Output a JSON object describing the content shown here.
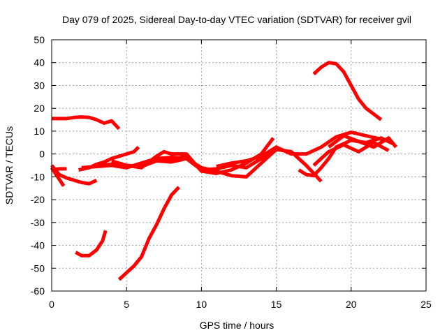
{
  "chart_data": {
    "type": "line",
    "title": "Day 079 of 2025, Sidereal Day-to-day VTEC variation (SDTVAR) for receiver gvil",
    "xlabel": "GPS time / hours",
    "ylabel": "SDTVAR / TECUs",
    "xlim": [
      0,
      25
    ],
    "ylim": [
      -60,
      50
    ],
    "xticks": [
      0,
      5,
      10,
      15,
      20,
      25
    ],
    "yticks": [
      -60,
      -50,
      -40,
      -30,
      -20,
      -10,
      0,
      10,
      20,
      30,
      40,
      50
    ],
    "grid": true,
    "color": "#ff0000",
    "series": [
      {
        "x": [
          0.0,
          0.5,
          1.0,
          1.5,
          2.0,
          2.5,
          3.0,
          3.5,
          4.0,
          4.5
        ],
        "y": [
          15.5,
          15.5,
          15.5,
          16.0,
          16.2,
          16.0,
          15.0,
          13.5,
          14.5,
          11.0
        ]
      },
      {
        "x": [
          0.0,
          0.5,
          1.0,
          1.5,
          2.0,
          2.5,
          3.0
        ],
        "y": [
          -5.0,
          -9.0,
          -10.5,
          -11.5,
          -12.5,
          -13.0,
          -11.5
        ]
      },
      {
        "x": [
          0.0,
          0.3,
          0.6,
          0.8
        ],
        "y": [
          -6.0,
          -9.0,
          -12.0,
          -14.0
        ]
      },
      {
        "x": [
          0.0,
          0.5,
          1.0
        ],
        "y": [
          -7.0,
          -6.5,
          -6.5
        ]
      },
      {
        "x": [
          1.6,
          2.0,
          2.5,
          3.0,
          3.4,
          3.6
        ],
        "y": [
          -43.0,
          -44.5,
          -44.5,
          -42.0,
          -38.0,
          -33.5
        ]
      },
      {
        "x": [
          1.8,
          2.5,
          3.0,
          3.5,
          4.0,
          4.5,
          5.0,
          5.5,
          5.8
        ],
        "y": [
          -7.0,
          -6.0,
          -4.5,
          -3.5,
          -2.0,
          -1.0,
          0.0,
          1.0,
          3.0
        ]
      },
      {
        "x": [
          2.0,
          3.0,
          4.0,
          5.0,
          6.0,
          7.0,
          8.0,
          9.0,
          10.0,
          11.0,
          12.0,
          13.0,
          14.0,
          15.0
        ],
        "y": [
          -6.0,
          -5.5,
          -5.0,
          -6.0,
          -4.0,
          -2.0,
          -1.5,
          -2.0,
          -7.0,
          -6.5,
          -5.0,
          -6.0,
          -2.0,
          2.5
        ]
      },
      {
        "x": [
          3.0,
          4.0,
          5.0,
          6.0,
          7.0,
          8.0,
          9.0,
          10.0,
          11.0
        ],
        "y": [
          -5.0,
          -4.5,
          -5.0,
          -5.5,
          -3.0,
          -2.5,
          -1.0,
          -7.0,
          -8.0
        ]
      },
      {
        "x": [
          4.0,
          5.0,
          6.0,
          7.0,
          7.5,
          8.0,
          9.0,
          10.0,
          11.0,
          12.0,
          13.0,
          14.0,
          14.8
        ],
        "y": [
          -3.0,
          -5.0,
          -6.0,
          -1.0,
          1.0,
          0.0,
          0.0,
          -7.5,
          -8.5,
          -7.0,
          -4.0,
          0.0,
          7.0
        ]
      },
      {
        "x": [
          4.5,
          5.0,
          5.5,
          6.0,
          6.5,
          7.0,
          7.5,
          8.0,
          8.5
        ],
        "y": [
          -55.0,
          -52.0,
          -49.0,
          -45.0,
          -37.0,
          -31.0,
          -24.0,
          -18.0,
          -14.5
        ]
      },
      {
        "x": [
          6.0,
          7.0,
          8.0,
          9.0,
          10.0,
          11.0,
          12.0,
          13.0,
          14.0,
          15.0,
          16.0,
          17.0,
          18.0
        ],
        "y": [
          -5.0,
          -3.0,
          -3.5,
          -2.0,
          -6.0,
          -7.5,
          -9.5,
          -10.0,
          -4.0,
          2.0,
          1.0,
          -5.0,
          -12.0
        ]
      },
      {
        "x": [
          11.0,
          12.0,
          13.0,
          14.0,
          15.0,
          16.0,
          17.0,
          18.0,
          19.0,
          20.0,
          21.0,
          22.0,
          22.8
        ],
        "y": [
          -5.5,
          -4.0,
          -3.0,
          -1.0,
          3.0,
          0.0,
          0.0,
          3.0,
          7.5,
          9.5,
          8.0,
          6.5,
          5.0
        ]
      },
      {
        "x": [
          17.5,
          18.0,
          18.5,
          19.0,
          19.5,
          20.0,
          20.5,
          21.0,
          21.5,
          22.0
        ],
        "y": [
          35.0,
          38.0,
          40.0,
          39.5,
          36.0,
          30.0,
          24.0,
          20.0,
          17.5,
          15.0
        ]
      },
      {
        "x": [
          16.5,
          17.0,
          17.5,
          18.0,
          18.5,
          19.0,
          20.0,
          21.0,
          22.0,
          22.8
        ],
        "y": [
          -7.0,
          -9.0,
          -9.5,
          -6.0,
          -2.0,
          3.0,
          6.0,
          5.0,
          7.0,
          4.5
        ]
      },
      {
        "x": [
          17.5,
          18.5,
          19.5,
          20.5,
          21.5,
          22.5
        ],
        "y": [
          -5.0,
          1.0,
          4.0,
          1.0,
          5.0,
          1.5
        ]
      },
      {
        "x": [
          18.5,
          19.5,
          20.5,
          21.5,
          22.5,
          23.0
        ],
        "y": [
          3.0,
          8.0,
          5.5,
          3.0,
          7.0,
          3.0
        ]
      }
    ]
  }
}
